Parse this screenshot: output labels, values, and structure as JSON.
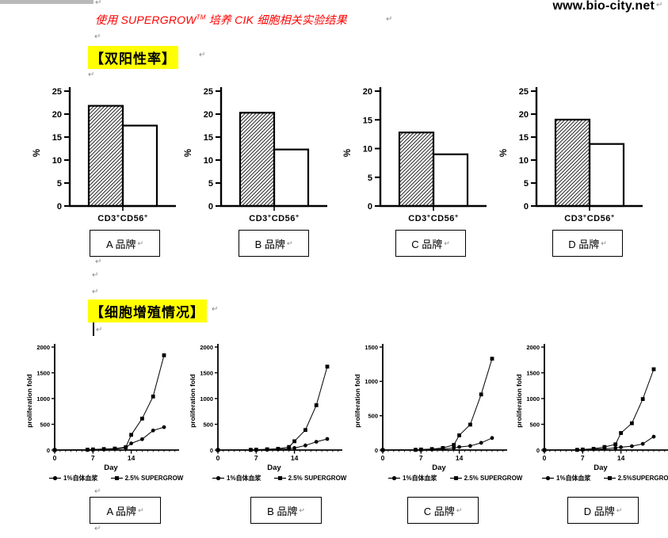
{
  "page": {
    "url": "www.bio-city.net",
    "title": {
      "pre": "使用 SUPERGROW",
      "tm": "TM",
      "post": " 培养 CIK 细胞相关实验结果"
    },
    "paragraph_mark": "↵"
  },
  "sections": {
    "double_positive": {
      "heading": "【双阳性率】"
    },
    "proliferation": {
      "heading": "【细胞增殖情况】"
    }
  },
  "chart_data": [
    {
      "id": "bar-a",
      "type": "bar",
      "brand": "A 品牌",
      "category": "CD3+CD56+",
      "ylabel": "%",
      "ylim": [
        0,
        25
      ],
      "ytick_step": 5,
      "grid": false,
      "series": [
        {
          "name": "hatched bar",
          "style": "hatched",
          "value": 21.8
        },
        {
          "name": "open bar",
          "style": "open",
          "value": 17.5
        }
      ]
    },
    {
      "id": "bar-b",
      "type": "bar",
      "brand": "B 品牌",
      "category": "CD3+CD56+",
      "ylabel": "%",
      "ylim": [
        0,
        25
      ],
      "ytick_step": 5,
      "grid": false,
      "series": [
        {
          "name": "hatched bar",
          "style": "hatched",
          "value": 20.3
        },
        {
          "name": "open bar",
          "style": "open",
          "value": 12.3
        }
      ]
    },
    {
      "id": "bar-c",
      "type": "bar",
      "brand": "C 品牌",
      "category": "CD3+CD56+",
      "ylabel": "%",
      "ylim": [
        0,
        20
      ],
      "ytick_step": 5,
      "grid": false,
      "series": [
        {
          "name": "hatched bar",
          "style": "hatched",
          "value": 12.8
        },
        {
          "name": "open bar",
          "style": "open",
          "value": 9.0
        }
      ]
    },
    {
      "id": "bar-d",
      "type": "bar",
      "brand": "D 品牌",
      "category": "CD3+CD56+",
      "ylabel": "%",
      "ylim": [
        0,
        25
      ],
      "ytick_step": 5,
      "grid": false,
      "series": [
        {
          "name": "hatched bar",
          "style": "hatched",
          "value": 18.8
        },
        {
          "name": "open bar",
          "style": "open",
          "value": 13.5
        }
      ]
    },
    {
      "id": "line-a",
      "type": "line",
      "brand": "A 品牌",
      "xlabel": "Day",
      "ylabel": "proliferation fold",
      "ylim": [
        0,
        2000
      ],
      "ytick_step": 500,
      "xticks": [
        0,
        7,
        14
      ],
      "grid": false,
      "legend_position": "bottom",
      "x": [
        0,
        6,
        7,
        9,
        11,
        13,
        14,
        16,
        18,
        20
      ],
      "series": [
        {
          "name": "1%自体血浆",
          "marker": "circle",
          "values": [
            0,
            3,
            6,
            10,
            20,
            45,
            130,
            210,
            380,
            445
          ]
        },
        {
          "name": "2.5% SUPERGROW",
          "marker": "square",
          "values": [
            0,
            8,
            12,
            20,
            30,
            55,
            295,
            610,
            1040,
            1840
          ]
        }
      ]
    },
    {
      "id": "line-b",
      "type": "line",
      "brand": "B 品牌",
      "xlabel": "Day",
      "ylabel": "proliferation fold",
      "ylim": [
        0,
        2000
      ],
      "ytick_step": 500,
      "xticks": [
        0,
        7,
        14
      ],
      "grid": false,
      "legend_position": "bottom",
      "x": [
        0,
        6,
        7,
        9,
        11,
        13,
        14,
        16,
        18,
        20
      ],
      "series": [
        {
          "name": "1%自体血浆",
          "marker": "circle",
          "values": [
            0,
            3,
            5,
            8,
            15,
            25,
            40,
            90,
            160,
            215
          ]
        },
        {
          "name": "2.5% SUPERGROW",
          "marker": "square",
          "values": [
            0,
            5,
            8,
            15,
            25,
            60,
            170,
            390,
            870,
            1620
          ]
        }
      ]
    },
    {
      "id": "line-c",
      "type": "line",
      "brand": "C 品牌",
      "xlabel": "Day",
      "ylabel": "proliferation fold",
      "ylim": [
        0,
        1500
      ],
      "ytick_step": 500,
      "xticks": [
        0,
        7,
        14
      ],
      "grid": false,
      "legend_position": "bottom",
      "x": [
        0,
        6,
        7,
        9,
        11,
        13,
        14,
        16,
        18,
        20
      ],
      "series": [
        {
          "name": "1%自体血浆",
          "marker": "circle",
          "values": [
            0,
            3,
            5,
            8,
            15,
            30,
            45,
            60,
            105,
            175
          ]
        },
        {
          "name": "2.5% SUPERGROW",
          "marker": "square",
          "values": [
            0,
            4,
            8,
            15,
            30,
            75,
            215,
            370,
            810,
            1330
          ]
        }
      ]
    },
    {
      "id": "line-d",
      "type": "line",
      "brand": "D 品牌",
      "xlabel": "Day",
      "ylabel": "proliferation fold",
      "ylim": [
        0,
        2000
      ],
      "ytick_step": 500,
      "xticks": [
        0,
        7,
        14
      ],
      "grid": false,
      "legend_position": "bottom",
      "x": [
        0,
        6,
        7,
        9,
        11,
        13,
        14,
        16,
        18,
        20
      ],
      "series": [
        {
          "name": "1%自体血浆",
          "marker": "circle",
          "values": [
            0,
            3,
            8,
            15,
            25,
            40,
            55,
            75,
            120,
            260
          ]
        },
        {
          "name": "2.5%SUPERGROW",
          "marker": "square",
          "values": [
            0,
            5,
            10,
            25,
            60,
            110,
            330,
            520,
            990,
            1570
          ]
        }
      ]
    }
  ]
}
